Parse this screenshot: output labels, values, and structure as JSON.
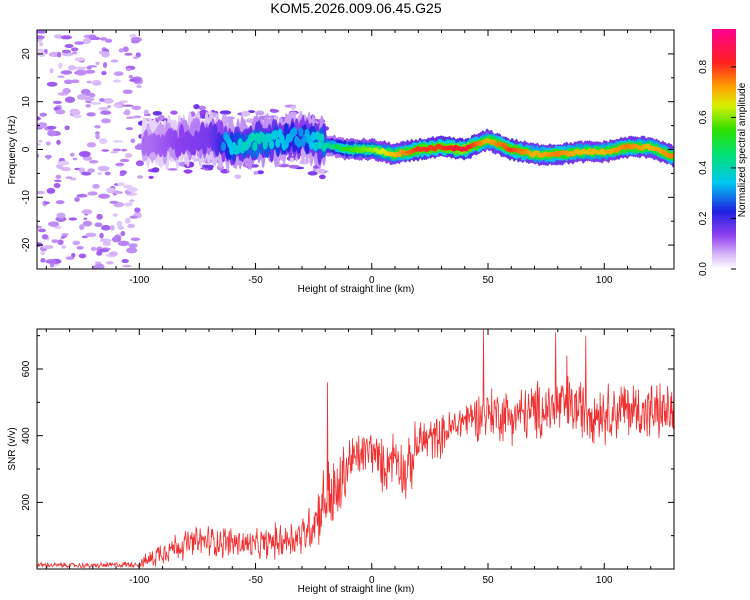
{
  "title": "KOM5.2026.009.06.45.G25",
  "chart_data": [
    {
      "type": "heatmap",
      "name": "spectrogram",
      "xlabel": "Height of straight line (km)",
      "ylabel": "Frequency (Hz)",
      "xlim": [
        -144,
        130
      ],
      "ylim": [
        -25,
        25
      ],
      "x_ticks": [
        -100,
        -50,
        0,
        50,
        100
      ],
      "x_tick_labels": [
        "-100",
        "-50",
        "0",
        "50",
        "100"
      ],
      "y_ticks": [
        -20,
        -10,
        0,
        10,
        20
      ],
      "y_tick_labels": [
        "-20",
        "-10",
        "0",
        "10",
        "20"
      ],
      "ridge": {
        "description": "dominant spectral ridge frequency vs height",
        "x": [
          -95,
          -80,
          -70,
          -60,
          -50,
          -40,
          -30,
          -20,
          -10,
          0,
          10,
          20,
          30,
          40,
          50,
          60,
          70,
          80,
          90,
          100,
          110,
          120,
          130
        ],
        "frequency": [
          1,
          2,
          2.5,
          1,
          1.5,
          2,
          2.5,
          1,
          0,
          0,
          -1,
          0,
          0.5,
          0,
          2,
          0,
          -1,
          -1,
          -0.5,
          -0.5,
          0.5,
          0.5,
          -1.5
        ],
        "peak_amplitude": [
          0.15,
          0.2,
          0.22,
          0.35,
          0.4,
          0.35,
          0.3,
          0.4,
          0.55,
          0.6,
          0.7,
          0.8,
          0.8,
          0.85,
          0.7,
          0.8,
          0.7,
          0.75,
          0.7,
          0.7,
          0.75,
          0.7,
          0.75
        ]
      },
      "colorbar": {
        "label": "Normalized spectral amplitude",
        "range": [
          0,
          0.95
        ],
        "ticks": [
          0.0,
          0.2,
          0.4,
          0.6,
          0.8
        ],
        "tick_labels": [
          "0.0",
          "0.2",
          "0.4",
          "0.6",
          "0.8"
        ],
        "colormap": "rainbow (white-purple-blue-cyan-green-yellow-orange-red-magenta)"
      }
    },
    {
      "type": "line",
      "name": "snr",
      "xlabel": "Height of straight line (km)",
      "ylabel": "SNR (v/v)",
      "xlim": [
        -144,
        130
      ],
      "ylim": [
        0,
        720
      ],
      "x_ticks": [
        -100,
        -50,
        0,
        50,
        100
      ],
      "x_tick_labels": [
        "-100",
        "-50",
        "0",
        "50",
        "100"
      ],
      "y_ticks": [
        200,
        400,
        600
      ],
      "y_tick_labels": [
        "200",
        "400",
        "600"
      ],
      "color": "#f03030",
      "envelope": {
        "x": [
          -144,
          -120,
          -100,
          -95,
          -90,
          -80,
          -70,
          -60,
          -50,
          -40,
          -30,
          -25,
          -20,
          -18,
          -15,
          -10,
          -5,
          0,
          5,
          10,
          15,
          20,
          30,
          40,
          50,
          60,
          70,
          80,
          90,
          100,
          110,
          120,
          130
        ],
        "mean": [
          12,
          10,
          15,
          30,
          55,
          75,
          85,
          80,
          70,
          85,
          100,
          140,
          210,
          220,
          215,
          320,
          340,
          360,
          300,
          350,
          280,
          380,
          400,
          450,
          470,
          460,
          470,
          490,
          480,
          470,
          480,
          470,
          470
        ],
        "spread": [
          8,
          8,
          10,
          30,
          40,
          45,
          50,
          50,
          45,
          55,
          65,
          80,
          110,
          130,
          120,
          90,
          70,
          70,
          80,
          80,
          90,
          80,
          60,
          60,
          80,
          80,
          90,
          100,
          90,
          90,
          90,
          90,
          80
        ]
      },
      "spikes": [
        {
          "x": -19,
          "y": 560
        },
        {
          "x": 48,
          "y": 720
        },
        {
          "x": 79,
          "y": 710
        },
        {
          "x": 92,
          "y": 700
        },
        {
          "x": 84,
          "y": 640
        }
      ]
    }
  ]
}
